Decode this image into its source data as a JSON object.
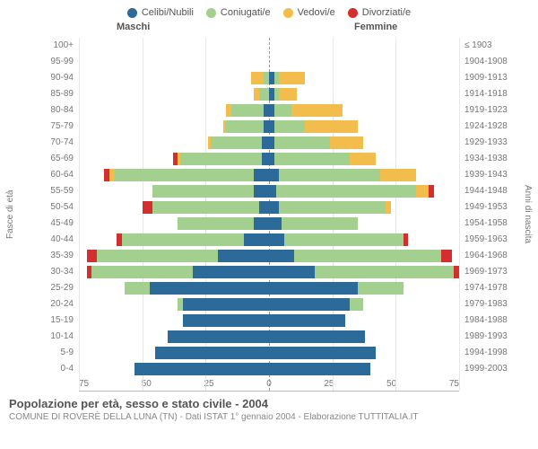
{
  "legend": [
    {
      "label": "Celibi/Nubili",
      "color": "#2b6a99"
    },
    {
      "label": "Coniugati/e",
      "color": "#a3cf8f"
    },
    {
      "label": "Vedovi/e",
      "color": "#f2bd4c"
    },
    {
      "label": "Divorziati/e",
      "color": "#d32f2f"
    }
  ],
  "headers": {
    "male": "Maschi",
    "female": "Femmine"
  },
  "ylabel_left": "Fasce di età",
  "ylabel_right": "Anni di nascita",
  "title": "Popolazione per età, sesso e stato civile - 2004",
  "subtitle": "COMUNE DI ROVERÈ DELLA LUNA (TN) - Dati ISTAT 1° gennaio 2004 - Elaborazione TUTTITALIA.IT",
  "colors": {
    "grid": "#e8e8e8",
    "axis_text": "#777",
    "celibi": "#2b6a99",
    "coniugati": "#a3cf8f",
    "vedovi": "#f2bd4c",
    "divorziati": "#d32f2f"
  },
  "xmax": 75,
  "xticks": [
    75,
    50,
    25,
    0,
    25,
    50,
    75
  ],
  "bands": [
    {
      "age": "100+",
      "birth": "≤ 1903",
      "m": [
        0,
        0,
        0,
        0
      ],
      "f": [
        0,
        0,
        0,
        0
      ]
    },
    {
      "age": "95-99",
      "birth": "1904-1908",
      "m": [
        0,
        0,
        0,
        0
      ],
      "f": [
        0,
        0,
        0,
        0
      ]
    },
    {
      "age": "90-94",
      "birth": "1909-1913",
      "m": [
        0,
        2,
        5,
        0
      ],
      "f": [
        2,
        2,
        10,
        0
      ]
    },
    {
      "age": "85-89",
      "birth": "1914-1918",
      "m": [
        0,
        4,
        2,
        0
      ],
      "f": [
        2,
        2,
        7,
        0
      ]
    },
    {
      "age": "80-84",
      "birth": "1919-1923",
      "m": [
        2,
        13,
        2,
        0
      ],
      "f": [
        2,
        7,
        20,
        0
      ]
    },
    {
      "age": "75-79",
      "birth": "1924-1928",
      "m": [
        2,
        15,
        1,
        0
      ],
      "f": [
        2,
        12,
        21,
        0
      ]
    },
    {
      "age": "70-74",
      "birth": "1929-1933",
      "m": [
        3,
        20,
        1,
        0
      ],
      "f": [
        2,
        22,
        13,
        0
      ]
    },
    {
      "age": "65-69",
      "birth": "1934-1938",
      "m": [
        3,
        32,
        1,
        2
      ],
      "f": [
        2,
        30,
        10,
        0
      ]
    },
    {
      "age": "60-64",
      "birth": "1939-1943",
      "m": [
        6,
        55,
        2,
        2
      ],
      "f": [
        4,
        40,
        14,
        0
      ]
    },
    {
      "age": "55-59",
      "birth": "1944-1948",
      "m": [
        6,
        40,
        0,
        0
      ],
      "f": [
        3,
        55,
        5,
        2
      ]
    },
    {
      "age": "50-54",
      "birth": "1949-1953",
      "m": [
        4,
        42,
        0,
        4
      ],
      "f": [
        4,
        42,
        2,
        0
      ]
    },
    {
      "age": "45-49",
      "birth": "1954-1958",
      "m": [
        6,
        30,
        0,
        0
      ],
      "f": [
        5,
        30,
        0,
        0
      ]
    },
    {
      "age": "40-44",
      "birth": "1959-1963",
      "m": [
        10,
        48,
        0,
        2
      ],
      "f": [
        6,
        47,
        0,
        2
      ]
    },
    {
      "age": "35-39",
      "birth": "1964-1968",
      "m": [
        20,
        48,
        0,
        4
      ],
      "f": [
        10,
        58,
        0,
        4
      ]
    },
    {
      "age": "30-34",
      "birth": "1969-1973",
      "m": [
        30,
        40,
        0,
        2
      ],
      "f": [
        18,
        55,
        0,
        2
      ]
    },
    {
      "age": "25-29",
      "birth": "1974-1978",
      "m": [
        47,
        10,
        0,
        0
      ],
      "f": [
        35,
        18,
        0,
        0
      ]
    },
    {
      "age": "20-24",
      "birth": "1979-1983",
      "m": [
        34,
        2,
        0,
        0
      ],
      "f": [
        32,
        5,
        0,
        0
      ]
    },
    {
      "age": "15-19",
      "birth": "1984-1988",
      "m": [
        34,
        0,
        0,
        0
      ],
      "f": [
        30,
        0,
        0,
        0
      ]
    },
    {
      "age": "10-14",
      "birth": "1989-1993",
      "m": [
        40,
        0,
        0,
        0
      ],
      "f": [
        38,
        0,
        0,
        0
      ]
    },
    {
      "age": "5-9",
      "birth": "1994-1998",
      "m": [
        45,
        0,
        0,
        0
      ],
      "f": [
        42,
        0,
        0,
        0
      ]
    },
    {
      "age": "0-4",
      "birth": "1999-2003",
      "m": [
        53,
        0,
        0,
        0
      ],
      "f": [
        40,
        0,
        0,
        0
      ]
    }
  ]
}
